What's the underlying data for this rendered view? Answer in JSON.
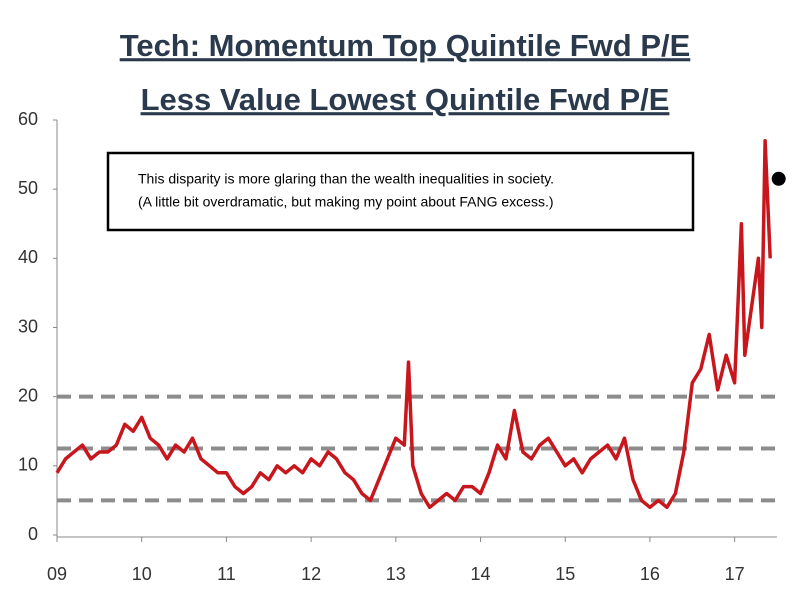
{
  "chart_data": {
    "type": "line",
    "title": [
      "Tech: Momentum  Top Quintile  Fwd P/E",
      "Less Value Lowest Quintile  Fwd P/E"
    ],
    "annotation": [
      "This disparity is more glaring than the wealth inequalities in society.",
      "(A little bit overdramatic, but making my point about FANG excess.)"
    ],
    "series": [
      {
        "color": "#c8161d",
        "x": [
          2009.0,
          2009.1,
          2009.2,
          2009.3,
          2009.4,
          2009.5,
          2009.6,
          2009.7,
          2009.8,
          2009.9,
          2010.0,
          2010.1,
          2010.2,
          2010.3,
          2010.4,
          2010.5,
          2010.6,
          2010.7,
          2010.8,
          2010.9,
          2011.0,
          2011.1,
          2011.2,
          2011.3,
          2011.4,
          2011.5,
          2011.6,
          2011.7,
          2011.8,
          2011.9,
          2012.0,
          2012.1,
          2012.2,
          2012.3,
          2012.4,
          2012.5,
          2012.6,
          2012.7,
          2012.8,
          2012.9,
          2013.0,
          2013.1,
          2013.15,
          2013.2,
          2013.3,
          2013.4,
          2013.5,
          2013.6,
          2013.7,
          2013.8,
          2013.9,
          2014.0,
          2014.1,
          2014.2,
          2014.3,
          2014.4,
          2014.5,
          2014.6,
          2014.7,
          2014.8,
          2014.9,
          2015.0,
          2015.1,
          2015.2,
          2015.3,
          2015.4,
          2015.5,
          2015.6,
          2015.7,
          2015.8,
          2015.9,
          2016.0,
          2016.1,
          2016.2,
          2016.3,
          2016.4,
          2016.5,
          2016.6,
          2016.7,
          2016.8,
          2016.9,
          2017.0,
          2017.08,
          2017.12,
          2017.2,
          2017.28,
          2017.32,
          2017.36,
          2017.42
        ],
        "values": [
          9,
          11,
          12,
          13,
          11,
          12,
          12,
          13,
          16,
          15,
          17,
          14,
          13,
          11,
          13,
          12,
          14,
          11,
          10,
          9,
          9,
          7,
          6,
          7,
          9,
          8,
          10,
          9,
          10,
          9,
          11,
          10,
          12,
          11,
          9,
          8,
          6,
          5,
          8,
          11,
          14,
          13,
          25,
          10,
          6,
          4,
          5,
          6,
          5,
          7,
          7,
          6,
          9,
          13,
          11,
          18,
          12,
          11,
          13,
          14,
          12,
          10,
          11,
          9,
          11,
          12,
          13,
          11,
          14,
          8,
          5,
          4,
          5,
          4,
          6,
          12,
          22,
          24,
          29,
          21,
          26,
          22,
          45,
          26,
          33,
          40,
          30,
          57,
          40
        ]
      }
    ],
    "marker": {
      "x": 2017.52,
      "y": 51.5,
      "color": "#000000"
    },
    "reference_lines": [
      20,
      12.5,
      5
    ],
    "reference_color": "#8c8c8c",
    "xlim": [
      2009,
      2017.5
    ],
    "xticks": [
      {
        "value": 2009,
        "label": "09"
      },
      {
        "value": 2010,
        "label": "10"
      },
      {
        "value": 2011,
        "label": "11"
      },
      {
        "value": 2012,
        "label": "12"
      },
      {
        "value": 2013,
        "label": "13"
      },
      {
        "value": 2014,
        "label": "14"
      },
      {
        "value": 2015,
        "label": "15"
      },
      {
        "value": 2016,
        "label": "16"
      },
      {
        "value": 2017,
        "label": "17"
      }
    ],
    "ylim": [
      0,
      60
    ],
    "yticks": [
      0,
      10,
      20,
      30,
      40,
      50,
      60
    ]
  }
}
